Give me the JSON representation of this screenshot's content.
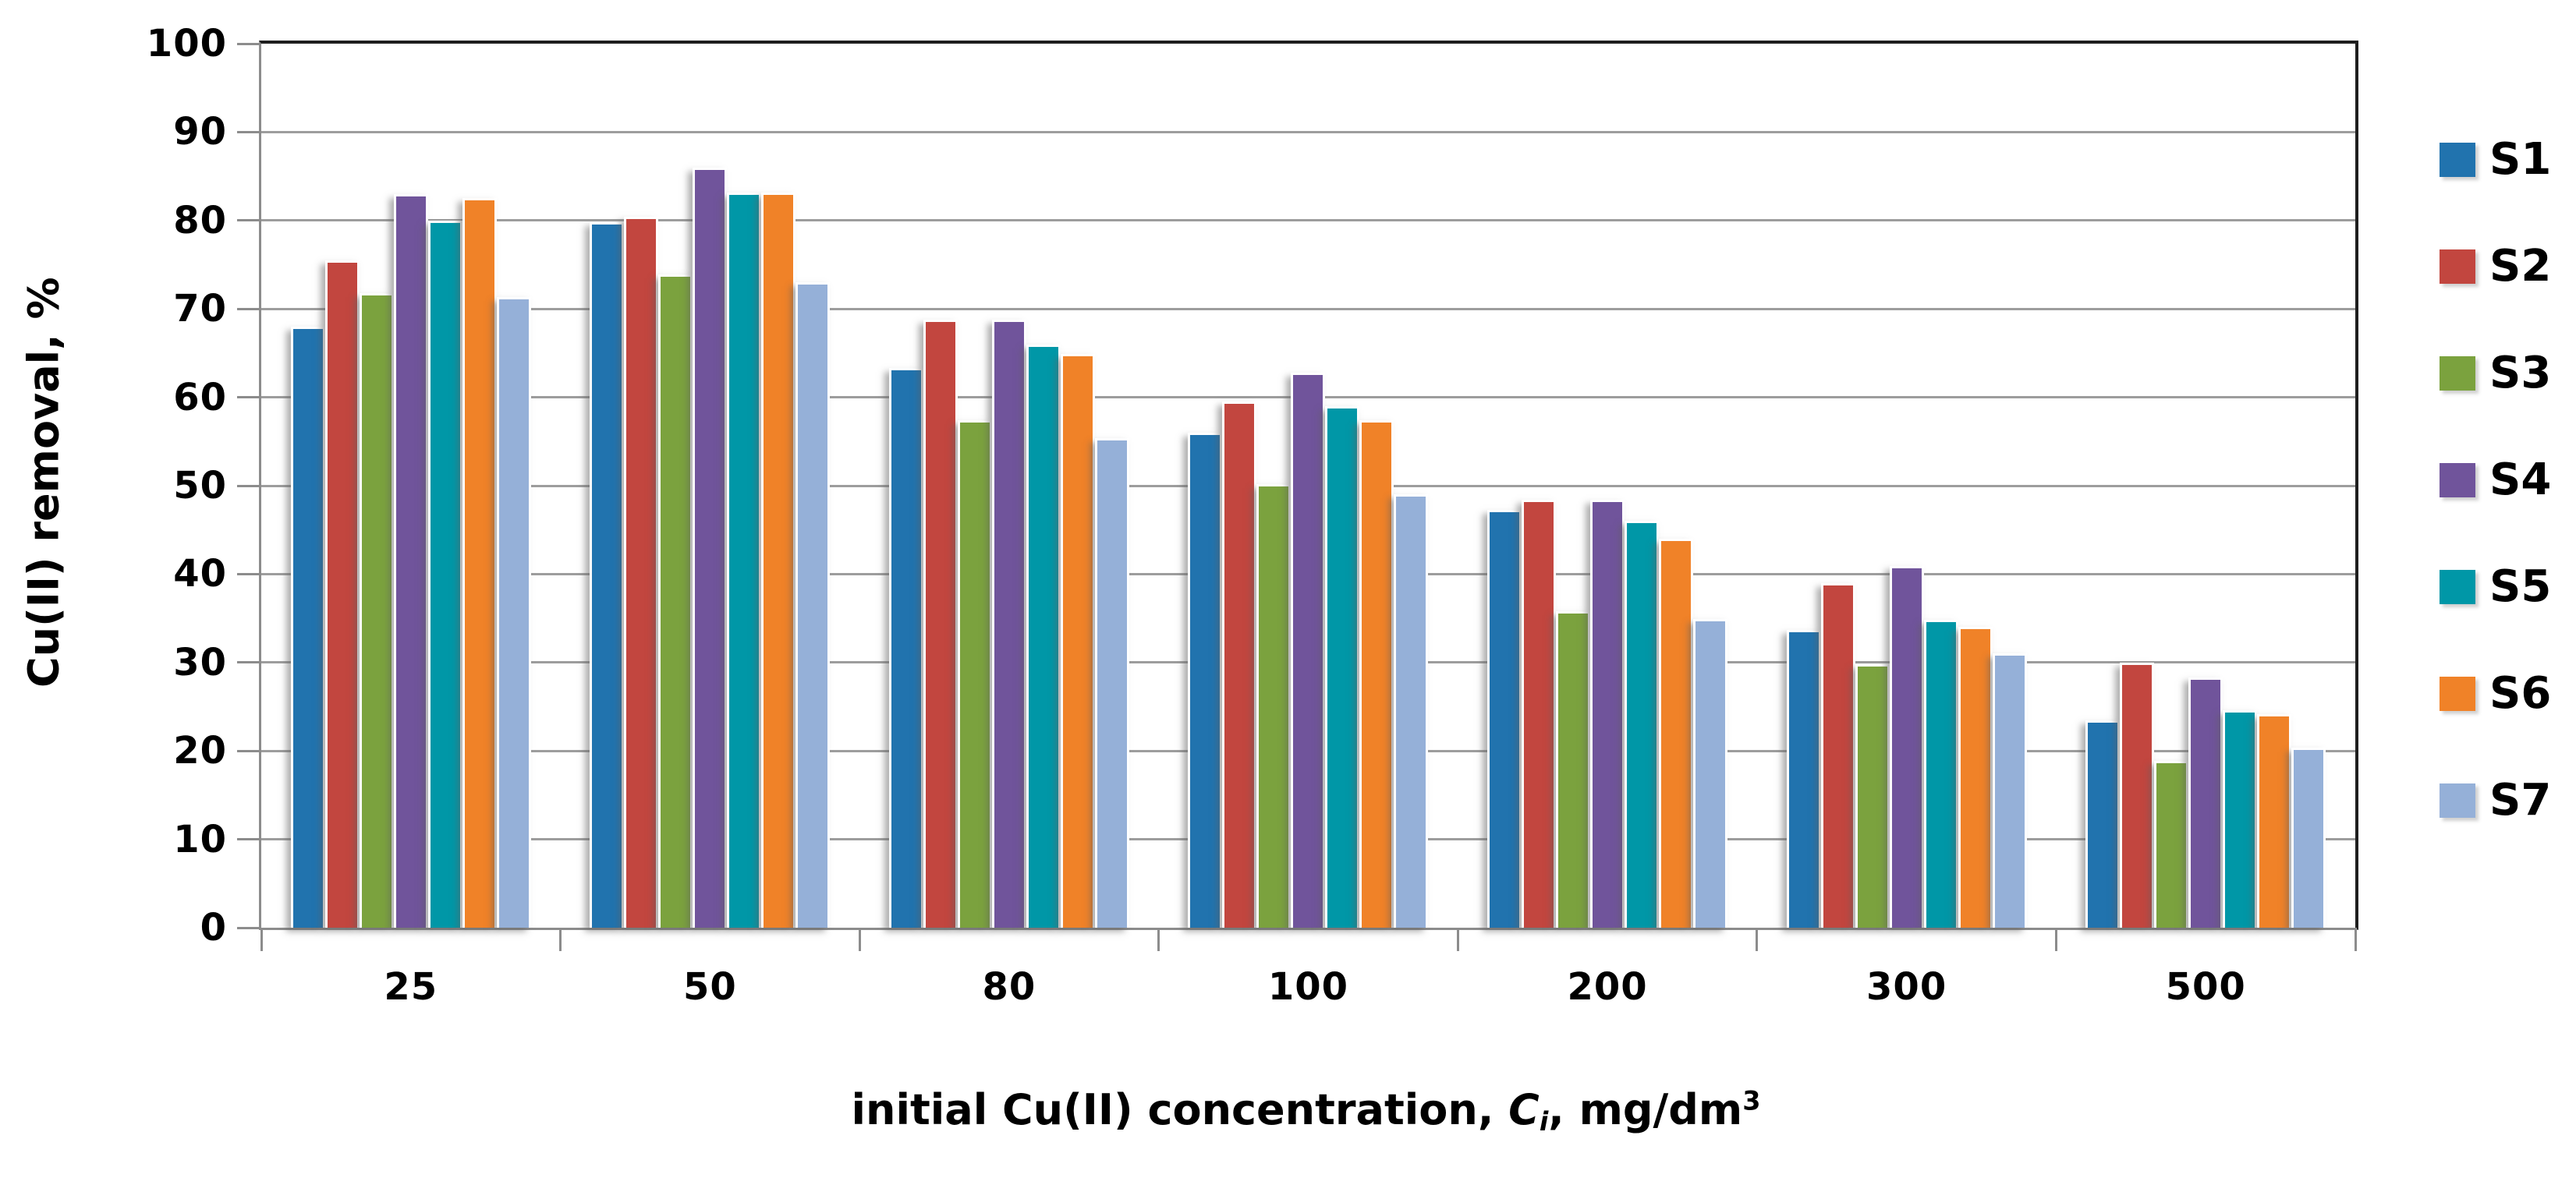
{
  "chart_data": {
    "type": "bar",
    "title": "",
    "categories": [
      "25",
      "50",
      "80",
      "100",
      "200",
      "300",
      "500"
    ],
    "series": [
      {
        "name": "S1",
        "color": "#2173AE",
        "values": [
          68.0,
          79.8,
          63.3,
          56.0,
          47.3,
          33.7,
          23.5
        ]
      },
      {
        "name": "S2",
        "color": "#C2463F",
        "values": [
          75.5,
          80.4,
          68.8,
          59.5,
          48.4,
          39.0,
          30.0
        ]
      },
      {
        "name": "S3",
        "color": "#7BA23E",
        "values": [
          71.8,
          73.9,
          57.4,
          50.2,
          35.8,
          29.8,
          18.9
        ]
      },
      {
        "name": "S4",
        "color": "#70549B",
        "values": [
          83.0,
          86.0,
          68.8,
          62.8,
          48.4,
          40.9,
          28.3
        ]
      },
      {
        "name": "S5",
        "color": "#0097A7",
        "values": [
          80.0,
          83.2,
          66.0,
          59.0,
          46.0,
          34.8,
          24.6
        ]
      },
      {
        "name": "S6",
        "color": "#F08228",
        "values": [
          82.5,
          83.2,
          64.9,
          57.4,
          44.0,
          34.0,
          24.2
        ]
      },
      {
        "name": "S7",
        "color": "#95B0D8",
        "values": [
          71.3,
          73.0,
          55.4,
          49.0,
          34.9,
          31.0,
          20.4
        ]
      }
    ],
    "ylabel": "Cu(II) removal, %",
    "xlabel": {
      "prefix": "initial Cu(II) concentration, ",
      "symbol": "C",
      "symbol_sub": "i",
      "suffix": ", mg/dm",
      "suffix_sup": "3"
    },
    "ylim": [
      0,
      100
    ],
    "ytick_step": 10,
    "grid": true,
    "legend_position": "right",
    "legend_labels": [
      "S1",
      "S2",
      "S3",
      "S4",
      "S5",
      "S6",
      "S7"
    ]
  },
  "style_colors": {
    "axis": "#8C8C8C",
    "plot_frame": "#1e1e1e",
    "gridline": "#9d9d9d",
    "text": "#000000"
  }
}
